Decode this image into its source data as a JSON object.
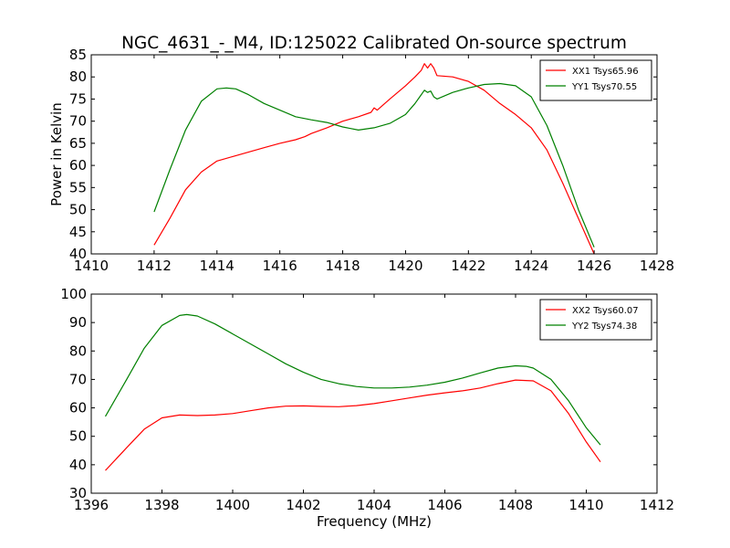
{
  "chart_data": [
    {
      "type": "line",
      "title": "NGC_4631_-_M4, ID:125022 Calibrated On-source spectrum",
      "xlabel": "",
      "ylabel": "Power in Kelvin",
      "xlim": [
        1410,
        1428
      ],
      "ylim": [
        40,
        85
      ],
      "xticks": [
        1410,
        1412,
        1414,
        1416,
        1418,
        1420,
        1422,
        1424,
        1426,
        1428
      ],
      "yticks": [
        40,
        45,
        50,
        55,
        60,
        65,
        70,
        75,
        80,
        85
      ],
      "legend": "top-right",
      "series": [
        {
          "name": "XX1 Tsys65.96",
          "color": "#ff0000",
          "x": [
            1412.0,
            1412.5,
            1413.0,
            1413.5,
            1414.0,
            1414.5,
            1415.0,
            1415.5,
            1416.0,
            1416.5,
            1416.8,
            1417.0,
            1417.5,
            1418.0,
            1418.5,
            1418.9,
            1419.0,
            1419.1,
            1419.5,
            1420.0,
            1420.3,
            1420.5,
            1420.6,
            1420.7,
            1420.8,
            1420.9,
            1421.0,
            1421.5,
            1422.0,
            1422.5,
            1423.0,
            1423.5,
            1424.0,
            1424.5,
            1425.0,
            1425.5,
            1426.0
          ],
          "y": [
            42,
            48,
            54.5,
            58.5,
            61,
            62,
            63,
            64,
            65,
            65.8,
            66.5,
            67.2,
            68.5,
            70,
            71,
            72,
            73,
            72.5,
            75,
            78,
            80,
            81.5,
            83,
            82,
            83,
            82,
            80.3,
            80,
            79,
            77,
            74,
            71.5,
            68.5,
            63.5,
            56,
            48,
            40
          ]
        },
        {
          "name": "YY1 Tsys70.55",
          "color": "#008000",
          "x": [
            1412.0,
            1412.5,
            1413.0,
            1413.5,
            1414.0,
            1414.3,
            1414.6,
            1415.0,
            1415.5,
            1416.0,
            1416.5,
            1417.0,
            1417.5,
            1418.0,
            1418.5,
            1419.0,
            1419.5,
            1420.0,
            1420.3,
            1420.5,
            1420.6,
            1420.7,
            1420.8,
            1420.9,
            1421.0,
            1421.5,
            1422.0,
            1422.5,
            1423.0,
            1423.5,
            1424.0,
            1424.5,
            1425.0,
            1425.5,
            1426.0
          ],
          "y": [
            49.5,
            59,
            68,
            74.5,
            77.3,
            77.5,
            77.3,
            76,
            74,
            72.5,
            71,
            70.3,
            69.7,
            68.7,
            68,
            68.5,
            69.5,
            71.5,
            74,
            76,
            77,
            76.5,
            76.8,
            75.5,
            75,
            76.5,
            77.5,
            78.3,
            78.5,
            78,
            75.5,
            69,
            60,
            50,
            41.5
          ]
        }
      ]
    },
    {
      "type": "line",
      "title": "",
      "xlabel": "Frequency (MHz)",
      "ylabel": "",
      "xlim": [
        1396,
        1412
      ],
      "ylim": [
        30,
        100
      ],
      "xticks": [
        1396,
        1398,
        1400,
        1402,
        1404,
        1406,
        1408,
        1410,
        1412
      ],
      "yticks": [
        30,
        40,
        50,
        60,
        70,
        80,
        90,
        100
      ],
      "legend": "top-right",
      "series": [
        {
          "name": "XX2 Tsys60.07",
          "color": "#ff0000",
          "x": [
            1396.4,
            1397.0,
            1397.5,
            1398.0,
            1398.5,
            1399.0,
            1399.5,
            1400.0,
            1400.5,
            1401.0,
            1401.5,
            1402.0,
            1402.5,
            1403.0,
            1403.5,
            1404.0,
            1404.5,
            1405.0,
            1405.5,
            1406.0,
            1406.5,
            1407.0,
            1407.5,
            1408.0,
            1408.5,
            1409.0,
            1409.5,
            1410.0,
            1410.4
          ],
          "y": [
            38,
            46,
            52.5,
            56.5,
            57.5,
            57.3,
            57.5,
            58,
            59,
            60,
            60.6,
            60.7,
            60.5,
            60.4,
            60.8,
            61.5,
            62.5,
            63.5,
            64.5,
            65.3,
            66,
            67,
            68.5,
            69.8,
            69.5,
            66,
            58,
            48,
            41
          ]
        },
        {
          "name": "YY2 Tsys74.38",
          "color": "#008000",
          "x": [
            1396.4,
            1397.0,
            1397.5,
            1398.0,
            1398.5,
            1398.7,
            1399.0,
            1399.5,
            1400.0,
            1400.5,
            1401.0,
            1401.5,
            1402.0,
            1402.5,
            1403.0,
            1403.5,
            1404.0,
            1404.5,
            1405.0,
            1405.5,
            1406.0,
            1406.5,
            1407.0,
            1407.5,
            1408.0,
            1408.3,
            1408.5,
            1409.0,
            1409.5,
            1410.0,
            1410.4
          ],
          "y": [
            57,
            70,
            81,
            89,
            92.5,
            92.8,
            92.3,
            89.5,
            86,
            82.5,
            79,
            75.5,
            72.5,
            70,
            68.5,
            67.5,
            67,
            67,
            67.3,
            68,
            69,
            70.5,
            72.3,
            74,
            74.8,
            74.6,
            74,
            70,
            62.5,
            53,
            47
          ]
        }
      ]
    }
  ]
}
